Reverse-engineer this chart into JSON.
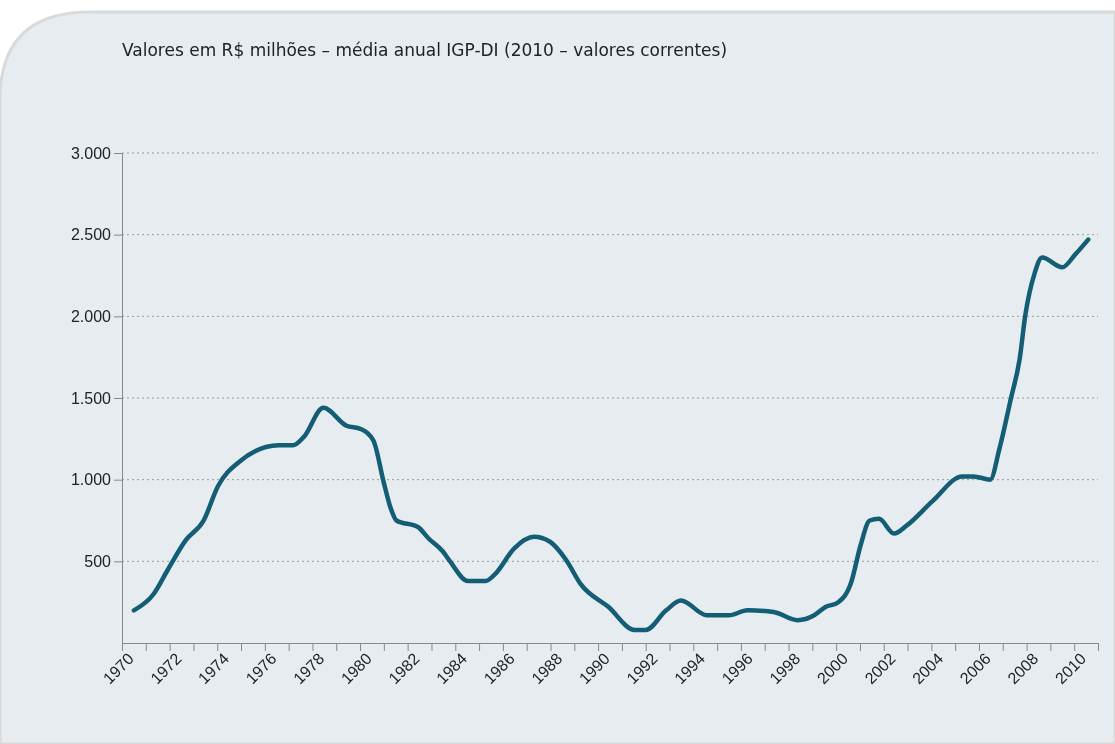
{
  "chart_data": {
    "type": "line",
    "title": "Valores em R$ milhões – média anual IGP-DI  (2010 – valores correntes)",
    "series": [
      {
        "color": "#135d75",
        "x": [
          1970.5,
          1971.33,
          1971.93,
          1972.68,
          1973.43,
          1974.03,
          1974.93,
          1976.58,
          1977.18,
          1977.63,
          1978.46,
          1979.43,
          1980.03,
          1980.56,
          1981.0,
          1981.3,
          1981.53,
          1982.43,
          1982.88,
          1983.48,
          1983.78,
          1984.53,
          1985.28,
          1985.66,
          1986.48,
          1987.31,
          1987.98,
          1988.65,
          1989.27,
          1990.44,
          1991.53,
          1992.0,
          1992.86,
          1993.48,
          1994.57,
          1995.5,
          1996.28,
          1997.37,
          1998.38,
          1999.08,
          1999.55,
          2000.09,
          2000.63,
          2001.03,
          2001.41,
          2001.8,
          2002.43,
          2002.97,
          2004.06,
          2005.3,
          2005.77,
          2006.47,
          2006.86,
          2007.33,
          2007.71,
          2007.95,
          2008.33,
          2008.65,
          2009.5,
          2010.05,
          2010.59
        ],
        "values": [
          200,
          300,
          450,
          630,
          750,
          960,
          1110,
          1210,
          1210,
          1260,
          1440,
          1330,
          1310,
          1240,
          980,
          820,
          750,
          710,
          640,
          560,
          500,
          380,
          380,
          420,
          580,
          650,
          620,
          510,
          360,
          220,
          80,
          80,
          200,
          260,
          170,
          170,
          200,
          190,
          140,
          170,
          220,
          250,
          370,
          600,
          750,
          760,
          670,
          720,
          870,
          1020,
          1020,
          1000,
          1190,
          1490,
          1740,
          2010,
          2260,
          2360,
          2300,
          2380,
          2470
        ]
      }
    ],
    "xlim": [
      1970,
      2011
    ],
    "xticks": [
      1970,
      {
        "value": 1971,
        "label": null
      },
      1972,
      {
        "value": 1973,
        "label": null
      },
      1974,
      {
        "value": 1975,
        "label": null
      },
      1976,
      {
        "value": 1977,
        "label": null
      },
      1978,
      {
        "value": 1979,
        "label": null
      },
      1980,
      {
        "value": 1981,
        "label": null
      },
      1982,
      {
        "value": 1983,
        "label": null
      },
      1984,
      {
        "value": 1985,
        "label": null
      },
      1986,
      {
        "value": 1987,
        "label": null
      },
      1988,
      {
        "value": 1989,
        "label": null
      },
      1990,
      {
        "value": 1991,
        "label": null
      },
      1992,
      {
        "value": 1993,
        "label": null
      },
      1994,
      {
        "value": 1995,
        "label": null
      },
      1996,
      {
        "value": 1997,
        "label": null
      },
      1998,
      {
        "value": 1999,
        "label": null
      },
      2000,
      {
        "value": 2001,
        "label": null
      },
      2002,
      {
        "value": 2003,
        "label": null
      },
      2004,
      {
        "value": 2005,
        "label": null
      },
      2006,
      {
        "value": 2007,
        "label": null
      },
      2008,
      {
        "value": 2009,
        "label": null
      },
      2010,
      {
        "value": 2011,
        "label": null
      }
    ],
    "ylim": [
      0,
      3000
    ],
    "yticks": [
      {
        "value": 500,
        "label": "500"
      },
      {
        "value": 1000,
        "label": "1.000"
      },
      {
        "value": 1500,
        "label": "1.500"
      },
      {
        "value": 2000,
        "label": "2.000"
      },
      {
        "value": 2500,
        "label": "2.500"
      },
      {
        "value": 3000,
        "label": "3.000"
      }
    ],
    "grid": "y",
    "line_style": "solid",
    "marker": "none"
  }
}
